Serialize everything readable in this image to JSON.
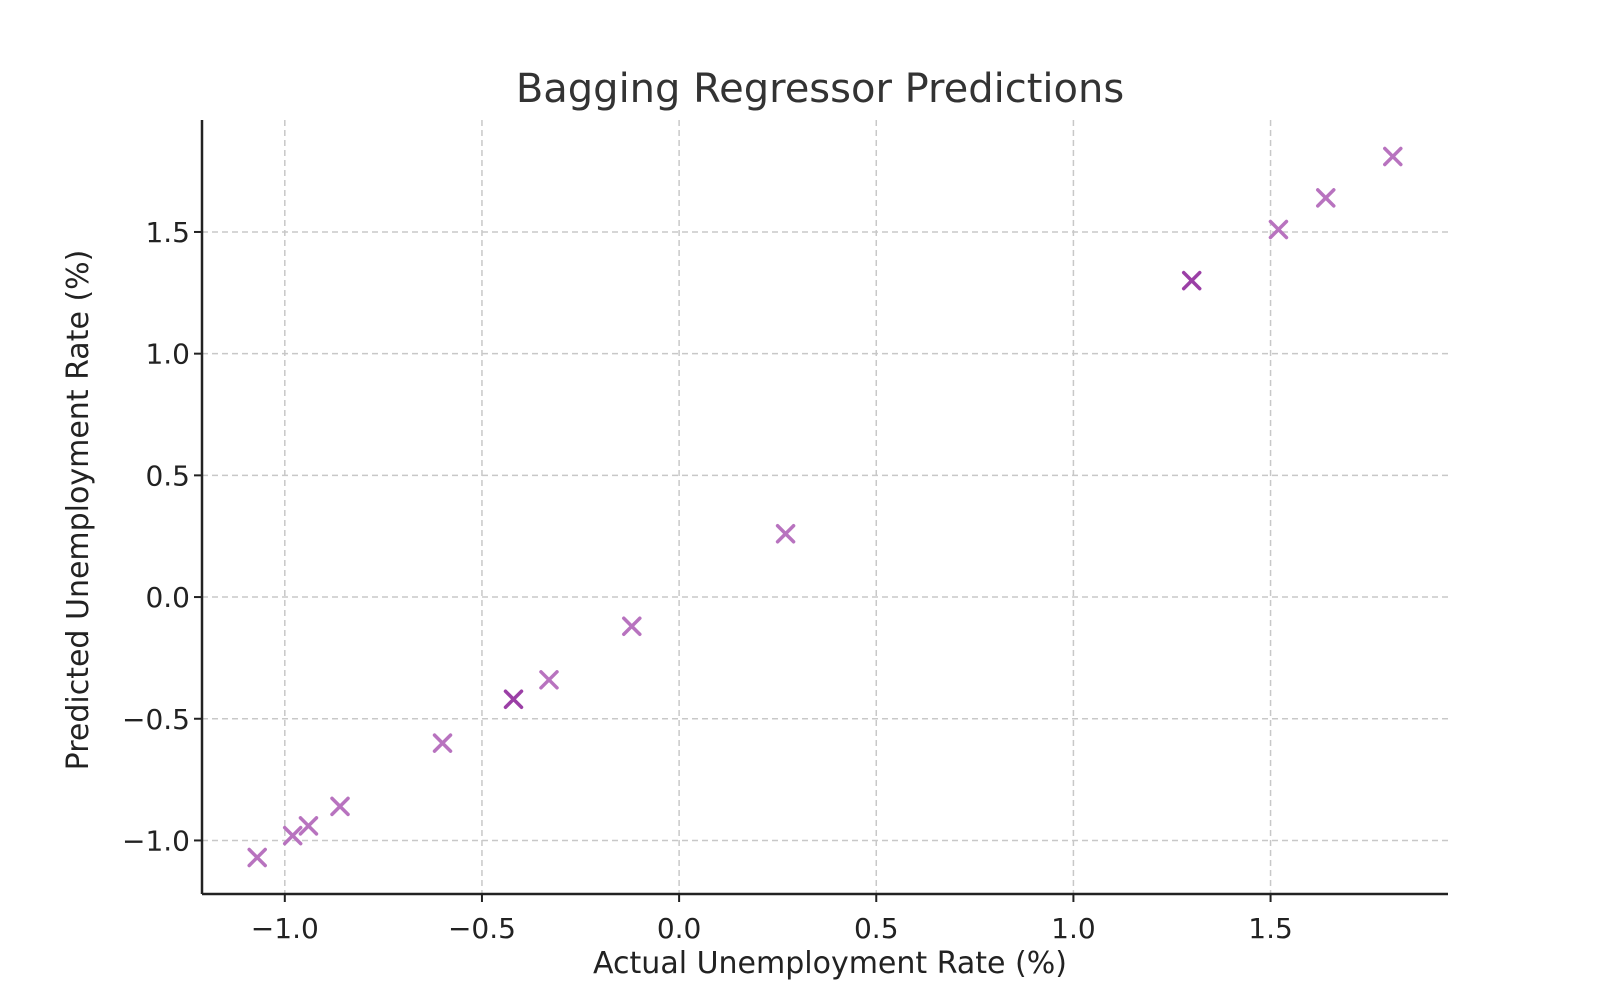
{
  "chart_data": {
    "type": "scatter",
    "title": "Bagging Regressor Predictions",
    "xlabel": "Actual Unemployment Rate (%)",
    "ylabel": "Predicted Unemployment Rate (%)",
    "xlim": [
      -1.21,
      1.95
    ],
    "ylim": [
      -1.22,
      1.96
    ],
    "xticks": [
      {
        "value": -1.0,
        "label": "−1.0"
      },
      {
        "value": -0.5,
        "label": "−0.5"
      },
      {
        "value": 0.0,
        "label": "0.0"
      },
      {
        "value": 0.5,
        "label": "0.5"
      },
      {
        "value": 1.0,
        "label": "1.0"
      },
      {
        "value": 1.5,
        "label": "1.5"
      }
    ],
    "yticks": [
      {
        "value": -1.0,
        "label": "−1.0"
      },
      {
        "value": -0.5,
        "label": "−0.5"
      },
      {
        "value": 0.0,
        "label": "0.0"
      },
      {
        "value": 0.5,
        "label": "0.5"
      },
      {
        "value": 1.0,
        "label": "1.0"
      },
      {
        "value": 1.5,
        "label": "1.5"
      }
    ],
    "grid": true,
    "marker": "x",
    "colors": {
      "point": "#b873bf",
      "point_overlap": "#9b3fa6"
    },
    "points": [
      {
        "x": -1.07,
        "y": -1.07,
        "overlap": false
      },
      {
        "x": -0.98,
        "y": -0.98,
        "overlap": false
      },
      {
        "x": -0.94,
        "y": -0.94,
        "overlap": false
      },
      {
        "x": -0.86,
        "y": -0.86,
        "overlap": false
      },
      {
        "x": -0.6,
        "y": -0.6,
        "overlap": false
      },
      {
        "x": -0.42,
        "y": -0.42,
        "overlap": true
      },
      {
        "x": -0.33,
        "y": -0.34,
        "overlap": false
      },
      {
        "x": -0.12,
        "y": -0.12,
        "overlap": false
      },
      {
        "x": 0.27,
        "y": 0.26,
        "overlap": false
      },
      {
        "x": 1.3,
        "y": 1.3,
        "overlap": true
      },
      {
        "x": 1.52,
        "y": 1.51,
        "overlap": false
      },
      {
        "x": 1.64,
        "y": 1.64,
        "overlap": false
      },
      {
        "x": 1.81,
        "y": 1.81,
        "overlap": false
      }
    ]
  }
}
